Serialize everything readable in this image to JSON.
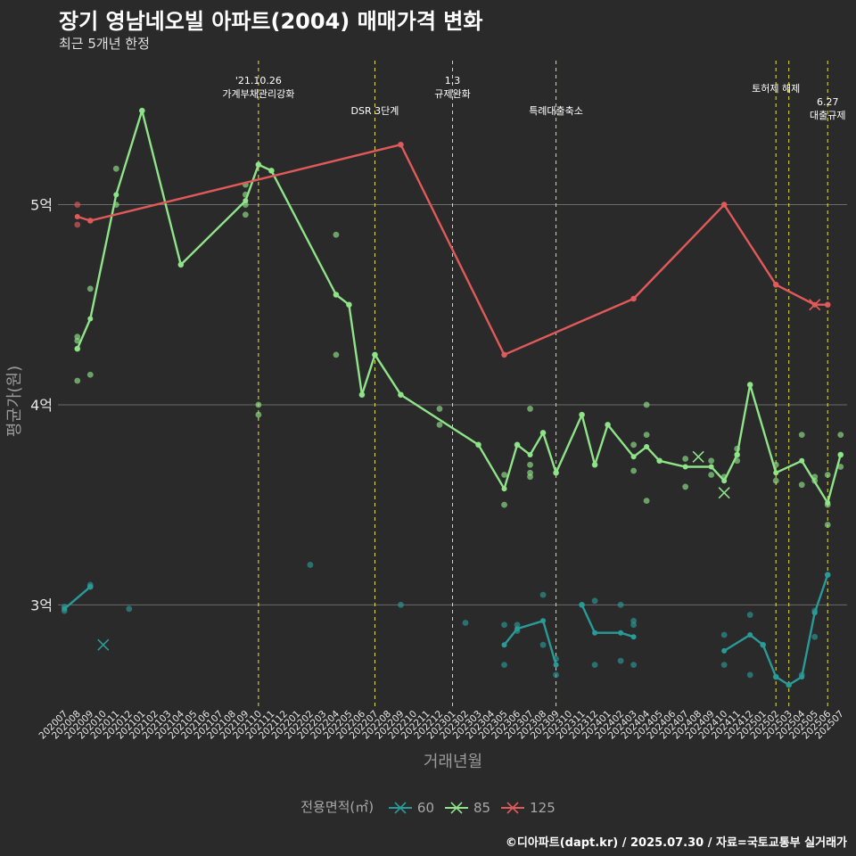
{
  "page": {
    "title": "장기 영남네오빌 아파트(2004) 매매가격 변화",
    "subtitle": "최근 5개년 한정",
    "caption": "©디아파트(dapt.kr) / 2025.07.30 / 자료=국토교통부 실거래가"
  },
  "chart_data": {
    "type": "line",
    "title": "장기 영남네오빌 아파트(2004) 매매가격 변화",
    "subtitle": "최근 5개년 한정",
    "xlabel": "거래년월",
    "ylabel": "평균가(원)",
    "ylim": [
      2.48,
      5.72
    ],
    "yticks": [
      {
        "v": 3,
        "label": "3억"
      },
      {
        "v": 4,
        "label": "4억"
      },
      {
        "v": 5,
        "label": "5억"
      }
    ],
    "categories": [
      "202007",
      "202008",
      "202009",
      "202010",
      "202011",
      "202012",
      "202101",
      "202102",
      "202103",
      "202104",
      "202105",
      "202106",
      "202107",
      "202108",
      "202109",
      "202110",
      "202111",
      "202112",
      "202201",
      "202202",
      "202203",
      "202204",
      "202205",
      "202206",
      "202207",
      "202208",
      "202209",
      "202210",
      "202211",
      "202212",
      "202301",
      "202302",
      "202303",
      "202304",
      "202305",
      "202306",
      "202307",
      "202308",
      "202309",
      "202310",
      "202311",
      "202312",
      "202401",
      "202402",
      "202403",
      "202404",
      "202405",
      "202406",
      "202407",
      "202408",
      "202409",
      "202410",
      "202411",
      "202412",
      "202501",
      "202502",
      "202503",
      "202504",
      "202505",
      "202506",
      "202507"
    ],
    "grid": true,
    "legend": {
      "title": "전용면적(㎡)",
      "position": "bottom",
      "entries": [
        "60",
        "85",
        "125"
      ]
    },
    "colors": {
      "60": "#2a9a97",
      "85": "#8fe388",
      "125": "#e05a5a",
      "policy": "#e6e63c",
      "grid": "#6a6a6a",
      "axis_text": "#e8e8e8",
      "axis_title": "#9a9a9a"
    },
    "policy_lines": [
      {
        "x": "202110",
        "label": [
          "'21.10.26",
          "가계부채관리강화"
        ]
      },
      {
        "x": "202207",
        "label": [
          "DSR 3단계"
        ]
      },
      {
        "x": "202301",
        "label": [
          "1.3",
          "규제완화"
        ]
      },
      {
        "x": "202309",
        "label": [
          "특례대출축소"
        ]
      },
      {
        "x": "202502",
        "label": [
          "토허제 해제"
        ]
      },
      {
        "x": "202503",
        "label": []
      },
      {
        "x": "202506",
        "label": [
          "6.27",
          "대출규제"
        ]
      }
    ],
    "series": [
      {
        "name": "60",
        "line": [
          [
            [
              "202007",
              2.98
            ],
            [
              "202009",
              3.09
            ]
          ],
          [
            [
              "202305",
              2.8
            ],
            [
              "202306",
              2.88
            ],
            [
              "202308",
              2.92
            ],
            [
              "202309",
              2.7
            ]
          ],
          [
            [
              "202311",
              3.0
            ],
            [
              "202312",
              2.86
            ],
            [
              "202402",
              2.86
            ],
            [
              "202403",
              2.84
            ]
          ],
          [
            [
              "202410",
              2.77
            ],
            [
              "202412",
              2.85
            ],
            [
              "202501",
              2.8
            ],
            [
              "202502",
              2.64
            ],
            [
              "202503",
              2.6
            ],
            [
              "202504",
              2.64
            ],
            [
              "202505",
              2.96
            ],
            [
              "202506",
              3.15
            ]
          ]
        ],
        "points": [
          [
            "202007",
            2.97
          ],
          [
            "202007",
            2.99
          ],
          [
            "202009",
            3.1
          ],
          [
            "202009",
            3.09
          ],
          [
            "202012",
            2.98
          ],
          [
            "202202",
            3.2
          ],
          [
            "202209",
            3.0
          ],
          [
            "202302",
            2.91
          ],
          [
            "202305",
            2.9
          ],
          [
            "202305",
            2.7
          ],
          [
            "202306",
            2.9
          ],
          [
            "202306",
            2.87
          ],
          [
            "202308",
            3.05
          ],
          [
            "202308",
            2.8
          ],
          [
            "202309",
            2.73
          ],
          [
            "202309",
            2.65
          ],
          [
            "202311",
            3.0
          ],
          [
            "202312",
            3.02
          ],
          [
            "202312",
            2.7
          ],
          [
            "202402",
            3.0
          ],
          [
            "202402",
            2.72
          ],
          [
            "202403",
            2.92
          ],
          [
            "202403",
            2.9
          ],
          [
            "202403",
            2.7
          ],
          [
            "202410",
            2.85
          ],
          [
            "202410",
            2.7
          ],
          [
            "202412",
            2.95
          ],
          [
            "202412",
            2.65
          ],
          [
            "202501",
            2.8
          ],
          [
            "202502",
            2.64
          ],
          [
            "202503",
            2.6
          ],
          [
            "202504",
            2.65
          ],
          [
            "202505",
            2.97
          ],
          [
            "202505",
            2.84
          ],
          [
            "202506",
            3.15
          ]
        ],
        "cross": [
          [
            "202010",
            2.8
          ]
        ]
      },
      {
        "name": "85",
        "line": [
          [
            [
              "202008",
              4.28
            ],
            [
              "202009",
              4.43
            ],
            [
              "202011",
              5.05
            ],
            [
              "202101",
              5.47
            ],
            [
              "202104",
              4.7
            ],
            [
              "202109",
              5.02
            ],
            [
              "202110",
              5.2
            ],
            [
              "202111",
              5.17
            ],
            [
              "202204",
              4.55
            ],
            [
              "202205",
              4.5
            ],
            [
              "202206",
              4.05
            ],
            [
              "202207",
              4.25
            ],
            [
              "202209",
              4.05
            ],
            [
              "202303",
              3.8
            ],
            [
              "202305",
              3.58
            ],
            [
              "202306",
              3.8
            ],
            [
              "202307",
              3.75
            ],
            [
              "202308",
              3.86
            ],
            [
              "202309",
              3.66
            ],
            [
              "202311",
              3.95
            ],
            [
              "202312",
              3.7
            ],
            [
              "202401",
              3.9
            ],
            [
              "202403",
              3.74
            ],
            [
              "202404",
              3.79
            ],
            [
              "202405",
              3.72
            ],
            [
              "202407",
              3.69
            ],
            [
              "202409",
              3.69
            ],
            [
              "202410",
              3.62
            ],
            [
              "202411",
              3.75
            ],
            [
              "202412",
              4.1
            ],
            [
              "202502",
              3.66
            ],
            [
              "202504",
              3.72
            ],
            [
              "202506",
              3.51
            ],
            [
              "202507",
              3.75
            ]
          ]
        ],
        "points": [
          [
            "202008",
            4.28
          ],
          [
            "202008",
            4.34
          ],
          [
            "202008",
            4.32
          ],
          [
            "202008",
            4.12
          ],
          [
            "202009",
            4.58
          ],
          [
            "202009",
            4.15
          ],
          [
            "202011",
            5.18
          ],
          [
            "202011",
            5.0
          ],
          [
            "202101",
            5.47
          ],
          [
            "202104",
            4.7
          ],
          [
            "202109",
            5.1
          ],
          [
            "202109",
            5.05
          ],
          [
            "202109",
            5.0
          ],
          [
            "202109",
            4.95
          ],
          [
            "202110",
            5.2
          ],
          [
            "202110",
            4.0
          ],
          [
            "202110",
            3.95
          ],
          [
            "202111",
            5.17
          ],
          [
            "202204",
            4.85
          ],
          [
            "202204",
            4.55
          ],
          [
            "202204",
            4.25
          ],
          [
            "202205",
            4.5
          ],
          [
            "202206",
            4.05
          ],
          [
            "202207",
            4.25
          ],
          [
            "202209",
            4.05
          ],
          [
            "202212",
            3.98
          ],
          [
            "202212",
            3.9
          ],
          [
            "202303",
            3.8
          ],
          [
            "202305",
            3.65
          ],
          [
            "202305",
            3.5
          ],
          [
            "202306",
            3.8
          ],
          [
            "202307",
            3.98
          ],
          [
            "202307",
            3.7
          ],
          [
            "202307",
            3.66
          ],
          [
            "202307",
            3.64
          ],
          [
            "202308",
            3.86
          ],
          [
            "202309",
            3.66
          ],
          [
            "202311",
            3.95
          ],
          [
            "202312",
            3.7
          ],
          [
            "202401",
            3.9
          ],
          [
            "202403",
            3.8
          ],
          [
            "202403",
            3.67
          ],
          [
            "202404",
            4.0
          ],
          [
            "202404",
            3.85
          ],
          [
            "202404",
            3.52
          ],
          [
            "202405",
            3.72
          ],
          [
            "202407",
            3.73
          ],
          [
            "202407",
            3.59
          ],
          [
            "202409",
            3.72
          ],
          [
            "202409",
            3.65
          ],
          [
            "202410",
            3.64
          ],
          [
            "202411",
            3.78
          ],
          [
            "202411",
            3.75
          ],
          [
            "202411",
            3.72
          ],
          [
            "202412",
            4.1
          ],
          [
            "202502",
            3.7
          ],
          [
            "202502",
            3.62
          ],
          [
            "202504",
            3.85
          ],
          [
            "202504",
            3.6
          ],
          [
            "202505",
            3.62
          ],
          [
            "202505",
            3.64
          ],
          [
            "202506",
            3.65
          ],
          [
            "202506",
            3.5
          ],
          [
            "202506",
            3.4
          ],
          [
            "202507",
            3.85
          ],
          [
            "202507",
            3.75
          ],
          [
            "202507",
            3.69
          ]
        ],
        "cross": [
          [
            "202408",
            3.74
          ],
          [
            "202410",
            3.56
          ]
        ]
      },
      {
        "name": "125",
        "line": [
          [
            [
              "202008",
              4.94
            ],
            [
              "202009",
              4.92
            ],
            [
              "202209",
              5.3
            ],
            [
              "202305",
              4.25
            ],
            [
              "202403",
              4.53
            ],
            [
              "202410",
              5.0
            ],
            [
              "202502",
              4.6
            ],
            [
              "202505",
              4.5
            ],
            [
              "202506",
              4.5
            ]
          ]
        ],
        "points": [
          [
            "202008",
            5.0
          ],
          [
            "202008",
            4.9
          ],
          [
            "202009",
            4.92
          ],
          [
            "202209",
            5.3
          ],
          [
            "202305",
            4.25
          ],
          [
            "202403",
            4.53
          ],
          [
            "202410",
            5.0
          ],
          [
            "202502",
            4.6
          ],
          [
            "202506",
            4.5
          ]
        ],
        "cross": [
          [
            "202505",
            4.5
          ]
        ]
      }
    ]
  }
}
